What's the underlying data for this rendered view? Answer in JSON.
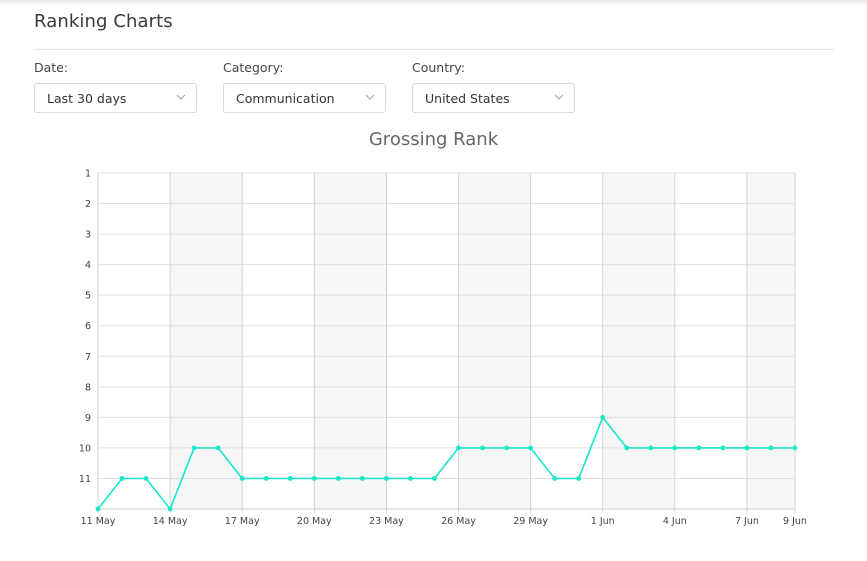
{
  "header": {
    "title": "Ranking Charts"
  },
  "filters": {
    "date": {
      "label": "Date:",
      "value": "Last 30 days"
    },
    "category": {
      "label": "Category:",
      "value": "Communication"
    },
    "country": {
      "label": "Country:",
      "value": "United States"
    }
  },
  "colors": {
    "line": "#19e6c8",
    "grid": "#e0e0e0",
    "band": "#f7f7f7"
  },
  "icons": {
    "dropdown": "chevron-down-icon"
  },
  "chart_data": {
    "type": "line",
    "title": "Grossing Rank",
    "xlabel": "",
    "ylabel": "",
    "y_reversed": true,
    "ylim": [
      12,
      1
    ],
    "yticks": [
      "1",
      "2",
      "3",
      "4",
      "5",
      "6",
      "7",
      "8",
      "9",
      "10",
      "11"
    ],
    "x_tick_labels": [
      "11 May",
      "14 May",
      "17 May",
      "20 May",
      "23 May",
      "26 May",
      "29 May",
      "1 Jun",
      "4 Jun",
      "7 Jun",
      "9 Jun"
    ],
    "x_tick_dates": [
      "2018-05-11",
      "2018-05-14",
      "2018-05-17",
      "2018-05-20",
      "2018-05-23",
      "2018-05-26",
      "2018-05-29",
      "2018-06-01",
      "2018-06-04",
      "2018-06-07",
      "2018-06-09"
    ],
    "x_range": [
      "2018-05-11",
      "2018-06-09"
    ],
    "shaded_weeks": [
      [
        "2018-05-14",
        "2018-05-17"
      ],
      [
        "2018-05-20",
        "2018-05-23"
      ],
      [
        "2018-05-26",
        "2018-05-29"
      ],
      [
        "2018-06-01",
        "2018-06-04"
      ],
      [
        "2018-06-07",
        "2018-06-09"
      ]
    ],
    "series": [
      {
        "x": [
          "2018-05-11",
          "2018-05-12",
          "2018-05-13",
          "2018-05-14",
          "2018-05-15",
          "2018-05-16",
          "2018-05-17",
          "2018-05-18",
          "2018-05-19",
          "2018-05-20",
          "2018-05-21",
          "2018-05-22",
          "2018-05-23",
          "2018-05-24",
          "2018-05-25",
          "2018-05-26",
          "2018-05-27",
          "2018-05-28",
          "2018-05-29",
          "2018-05-30",
          "2018-05-31",
          "2018-06-01",
          "2018-06-02",
          "2018-06-03",
          "2018-06-04",
          "2018-06-05",
          "2018-06-06",
          "2018-06-07",
          "2018-06-08",
          "2018-06-09"
        ],
        "values": [
          12,
          11,
          11,
          12,
          10,
          10,
          11,
          11,
          11,
          11,
          11,
          11,
          11,
          11,
          11,
          10,
          10,
          10,
          10,
          11,
          11,
          9,
          10,
          10,
          10,
          10,
          10,
          10,
          10,
          10
        ]
      }
    ],
    "grid": true,
    "legend": "none"
  }
}
